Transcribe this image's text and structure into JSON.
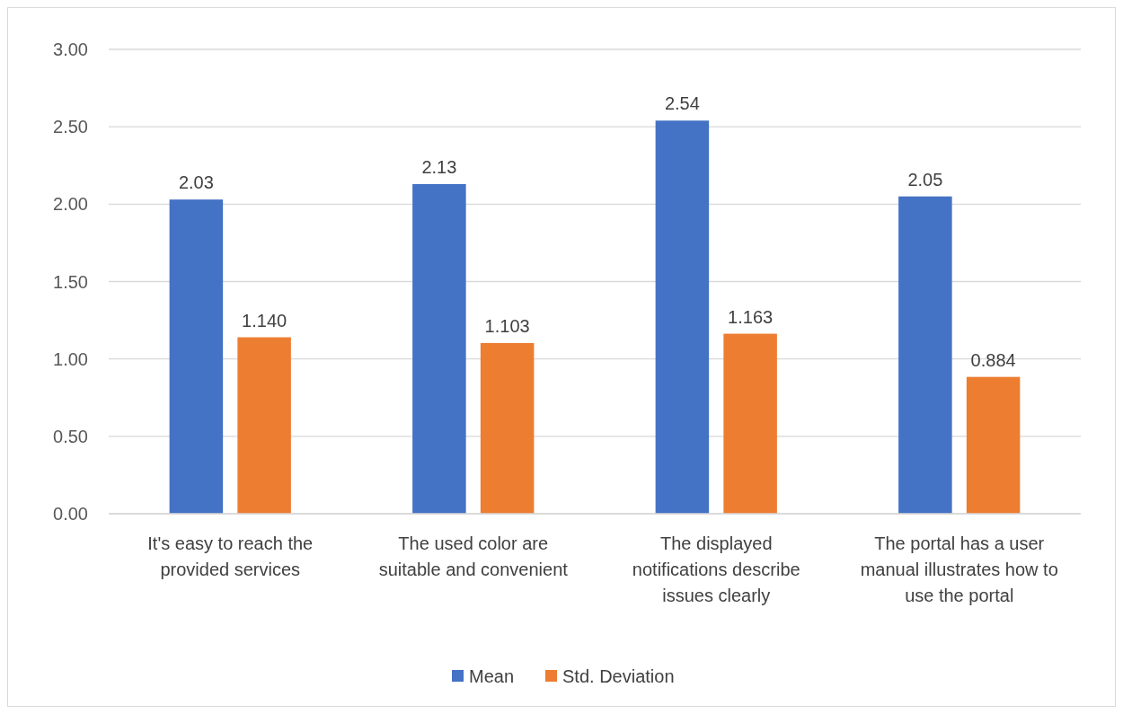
{
  "chart_data": {
    "type": "bar",
    "categories": [
      "It's easy to reach the provided services",
      "The used color are suitable and convenient",
      "The displayed notifications describe issues clearly",
      "The portal has a user manual illustrates how to use the portal"
    ],
    "series": [
      {
        "name": "Mean",
        "color": "#4472c4",
        "values": [
          2.03,
          2.13,
          2.54,
          2.05
        ],
        "value_labels": [
          "2.03",
          "2.13",
          "2.54",
          "2.05"
        ]
      },
      {
        "name": "Std. Deviation",
        "color": "#ed7d31",
        "values": [
          1.14,
          1.103,
          1.163,
          0.884
        ],
        "value_labels": [
          "1.140",
          "1.103",
          "1.163",
          "0.884"
        ]
      }
    ],
    "ylim": [
      0,
      3
    ],
    "yticks": [
      {
        "value": 0,
        "label": "0.00"
      },
      {
        "value": 0.5,
        "label": "0.50"
      },
      {
        "value": 1,
        "label": "1.00"
      },
      {
        "value": 1.5,
        "label": "1.50"
      },
      {
        "value": 2,
        "label": "2.00"
      },
      {
        "value": 2.5,
        "label": "2.50"
      },
      {
        "value": 3,
        "label": "3.00"
      }
    ],
    "grid": "y",
    "legend": "bottom"
  }
}
